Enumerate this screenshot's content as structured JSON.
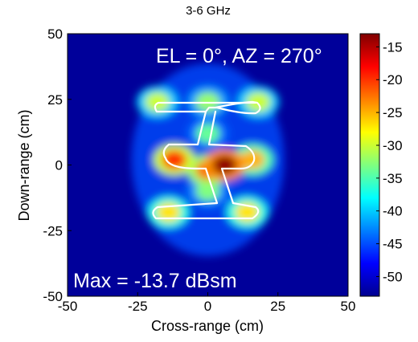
{
  "chart_data": {
    "type": "heatmap",
    "title": "3-6 GHz",
    "xlabel": "Cross-range (cm)",
    "ylabel": "Down-range (cm)",
    "xlim": [
      -50,
      50
    ],
    "ylim": [
      -50,
      50
    ],
    "xticks": [
      "-50",
      "-25",
      "0",
      "25",
      "50"
    ],
    "yticks": [
      "50",
      "25",
      "0",
      "-25",
      "-50"
    ],
    "colorbar": {
      "ticks": [
        "-15",
        "-20",
        "-25",
        "-30",
        "-35",
        "-40",
        "-45",
        "-50"
      ],
      "range": [
        -53,
        -13
      ],
      "colormap": "jet"
    },
    "annotations": {
      "angles": "EL = 0°, AZ = 270°",
      "max": "Max = -13.7 dBsm"
    },
    "hotspots": [
      {
        "x": 6,
        "y": 0,
        "dBsm": -13.7
      },
      {
        "x": -12,
        "y": 2,
        "dBsm": -20
      },
      {
        "x": 0,
        "y": -2,
        "dBsm": -22
      },
      {
        "x": 16,
        "y": 2,
        "dBsm": -25
      },
      {
        "x": -14,
        "y": -18,
        "dBsm": -27
      },
      {
        "x": 14,
        "y": -18,
        "dBsm": -27
      },
      {
        "x": -18,
        "y": 24,
        "dBsm": -30
      },
      {
        "x": 18,
        "y": 24,
        "dBsm": -30
      },
      {
        "x": 0,
        "y": 24,
        "dBsm": -32
      },
      {
        "x": 0,
        "y": 12,
        "dBsm": -34
      },
      {
        "x": 0,
        "y": -10,
        "dBsm": -33
      }
    ],
    "background_dBsm": -52,
    "target_outline_color": "#ffffff"
  }
}
